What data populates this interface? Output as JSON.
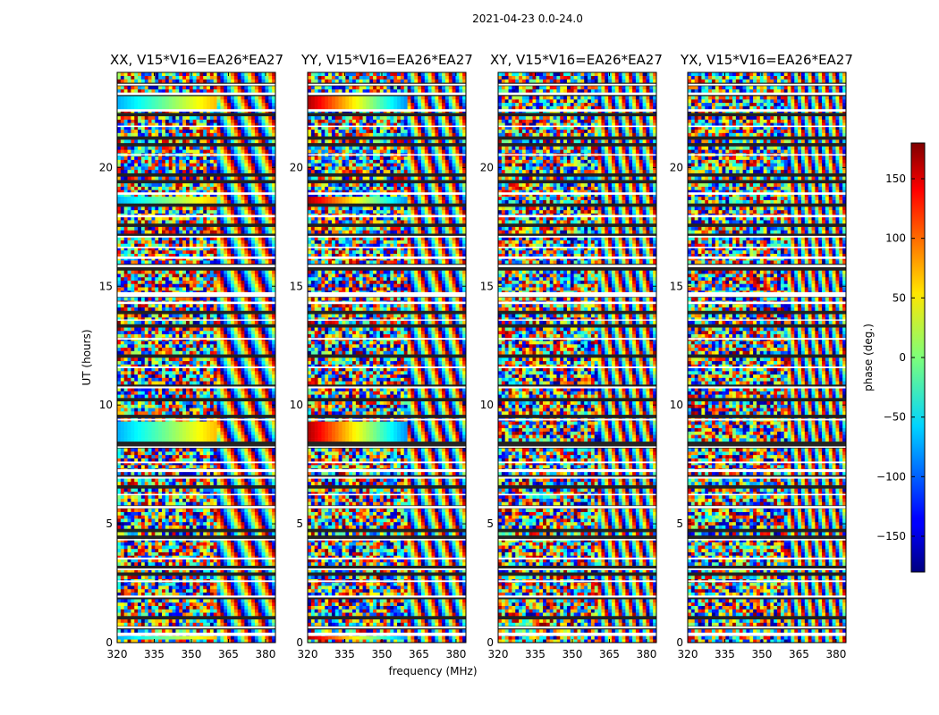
{
  "suptitle": "2021-04-23 0.0-24.0",
  "chart_data": {
    "type": "heatmap",
    "xlabel": "frequency (MHz)",
    "ylabel": "UT (hours)",
    "xlim": [
      320,
      384
    ],
    "ylim": [
      0,
      24
    ],
    "xticks": [
      "320",
      "335",
      "350",
      "365",
      "380"
    ],
    "yticks": [
      "0",
      "5",
      "10",
      "15",
      "20"
    ],
    "colormap": "jet",
    "colorbar": {
      "label": "phase (deg.)",
      "range": [
        -180,
        180
      ],
      "ticks": [
        "150",
        "100",
        "50",
        "0",
        "−50",
        "−100",
        "−150"
      ],
      "tick_values": [
        150,
        100,
        50,
        0,
        -50,
        -100,
        -150
      ]
    },
    "panels": [
      {
        "title": "XX, V15*V16=EA26*EA27"
      },
      {
        "title": "YY, V15*V16=EA26*EA27"
      },
      {
        "title": "XY, V15*V16=EA26*EA27"
      },
      {
        "title": "YX, V15*V16=EA26*EA27"
      }
    ],
    "flagged_gaps_ut": [
      [
        0.28,
        0.42
      ],
      [
        0.6,
        0.68
      ],
      [
        1.9,
        1.98
      ],
      [
        2.55,
        2.62
      ],
      [
        3.05,
        3.12
      ],
      [
        3.5,
        3.58
      ],
      [
        4.3,
        4.36
      ],
      [
        5.65,
        5.75
      ],
      [
        6.2,
        6.26
      ],
      [
        6.9,
        6.98
      ],
      [
        7.18,
        7.3
      ],
      [
        7.55,
        7.62
      ],
      [
        8.2,
        8.26
      ],
      [
        9.35,
        9.42
      ],
      [
        10.7,
        10.78
      ],
      [
        11.55,
        11.62
      ],
      [
        12.75,
        12.82
      ],
      [
        13.55,
        13.6
      ],
      [
        14.25,
        14.35
      ],
      [
        14.55,
        14.75
      ],
      [
        15.8,
        15.9
      ],
      [
        16.15,
        16.25
      ],
      [
        16.6,
        16.66
      ],
      [
        17.05,
        17.12
      ],
      [
        17.9,
        18.0
      ],
      [
        18.85,
        18.95
      ],
      [
        20.5,
        20.56
      ],
      [
        21.7,
        21.76
      ],
      [
        22.35,
        22.45
      ],
      [
        23.05,
        23.15
      ],
      [
        23.45,
        23.52
      ]
    ]
  }
}
